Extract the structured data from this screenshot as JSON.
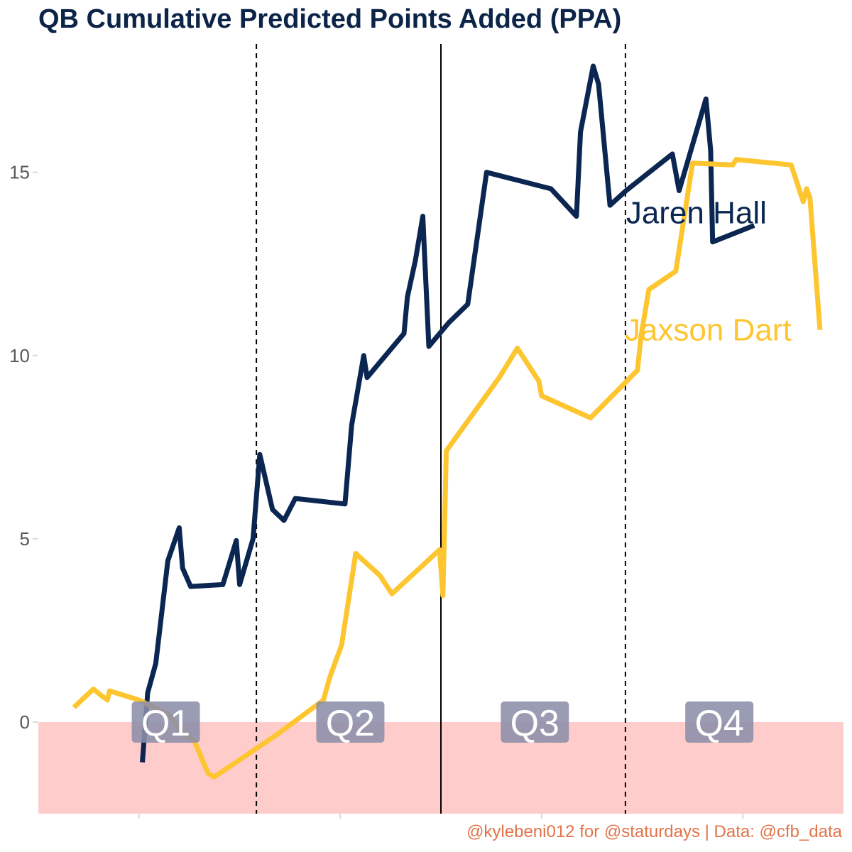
{
  "title": "QB Cumulative Predicted Points Added (PPA)",
  "caption": "@kylebeni012 for @staturdays | Data: @cfb_data",
  "colors": {
    "hall": "#0b2651",
    "dart": "#fdc52f",
    "negative_band": "#ffcccc",
    "quarter_label_bg": "#8c8ea8",
    "title": "#0b2447",
    "caption": "#e2734a"
  },
  "chart_data": {
    "type": "line",
    "title": "QB Cumulative Predicted Points Added (PPA)",
    "xlabel": "",
    "ylabel": "",
    "xlim": [
      0,
      120
    ],
    "ylim": [
      -2.5,
      18.5
    ],
    "y_ticks": [
      0,
      5,
      10,
      15
    ],
    "y_tick_labels": [
      "0",
      "5",
      "10",
      "15"
    ],
    "grid": false,
    "legend": "none (direct labels)",
    "negative_band": [
      -2.5,
      0
    ],
    "halftime_line": 60,
    "quarter_lines": [
      32.5,
      87.5
    ],
    "quarter_labels": [
      {
        "label": "Q1",
        "x": 19
      },
      {
        "label": "Q2",
        "x": 46.5
      },
      {
        "label": "Q3",
        "x": 74
      },
      {
        "label": "Q4",
        "x": 101.5
      }
    ],
    "series": [
      {
        "name": "Jaren Hall",
        "label_at": [
          87.6,
          13.9
        ],
        "points": [
          [
            15.5,
            -1.1
          ],
          [
            16.3,
            0.8
          ],
          [
            17.5,
            1.6
          ],
          [
            19.3,
            4.4
          ],
          [
            21,
            5.3
          ],
          [
            21.5,
            4.2
          ],
          [
            22.7,
            3.7
          ],
          [
            27.5,
            3.75
          ],
          [
            29.5,
            4.95
          ],
          [
            30,
            3.75
          ],
          [
            32,
            5.0
          ],
          [
            33,
            7.3
          ],
          [
            34.9,
            5.8
          ],
          [
            36.6,
            5.5
          ],
          [
            38.3,
            6.1
          ],
          [
            45.7,
            5.95
          ],
          [
            46.7,
            8.1
          ],
          [
            48.5,
            10.0
          ],
          [
            49,
            9.4
          ],
          [
            54.5,
            10.6
          ],
          [
            55,
            11.6
          ],
          [
            56.2,
            12.6
          ],
          [
            57.3,
            13.8
          ],
          [
            58.2,
            10.25
          ],
          [
            61.2,
            10.9
          ],
          [
            64,
            11.4
          ],
          [
            66.8,
            15.0
          ],
          [
            76.4,
            14.55
          ],
          [
            80.2,
            13.8
          ],
          [
            80.8,
            16.1
          ],
          [
            82.7,
            17.9
          ],
          [
            83.5,
            17.4
          ],
          [
            85.2,
            14.1
          ],
          [
            87.6,
            14.5
          ],
          [
            94.5,
            15.5
          ],
          [
            95.5,
            14.5
          ],
          [
            99.5,
            17.0
          ],
          [
            100.2,
            15.6
          ],
          [
            100.5,
            13.1
          ],
          [
            106.7,
            13.55
          ]
        ]
      },
      {
        "name": "Jaxson Dart",
        "label_at": [
          87.4,
          10.7
        ],
        "points": [
          [
            5.3,
            0.4
          ],
          [
            8.2,
            0.9
          ],
          [
            9.2,
            0.75
          ],
          [
            10.3,
            0.6
          ],
          [
            10.6,
            0.85
          ],
          [
            15,
            0.6
          ],
          [
            19.5,
            0.2
          ],
          [
            21.5,
            -0.3
          ],
          [
            23.2,
            -0.5
          ],
          [
            25.3,
            -1.4
          ],
          [
            26.2,
            -1.5
          ],
          [
            35.5,
            -0.35
          ],
          [
            42.5,
            0.6
          ],
          [
            43.4,
            1.2
          ],
          [
            45.2,
            2.1
          ],
          [
            47.3,
            4.6
          ],
          [
            50.9,
            4.0
          ],
          [
            52.7,
            3.5
          ],
          [
            59.8,
            4.7
          ],
          [
            60.3,
            3.45
          ],
          [
            60.8,
            7.4
          ],
          [
            68.7,
            9.4
          ],
          [
            71.4,
            10.2
          ],
          [
            74.6,
            9.3
          ],
          [
            75,
            8.9
          ],
          [
            82.3,
            8.3
          ],
          [
            89.3,
            9.6
          ],
          [
            89.8,
            10.5
          ],
          [
            91,
            11.8
          ],
          [
            95,
            12.3
          ],
          [
            97.5,
            15.25
          ],
          [
            103.5,
            15.2
          ],
          [
            104,
            15.35
          ],
          [
            112.2,
            15.2
          ],
          [
            114,
            14.2
          ],
          [
            114.5,
            14.55
          ],
          [
            115,
            14.3
          ],
          [
            116.5,
            10.7
          ]
        ]
      }
    ]
  }
}
